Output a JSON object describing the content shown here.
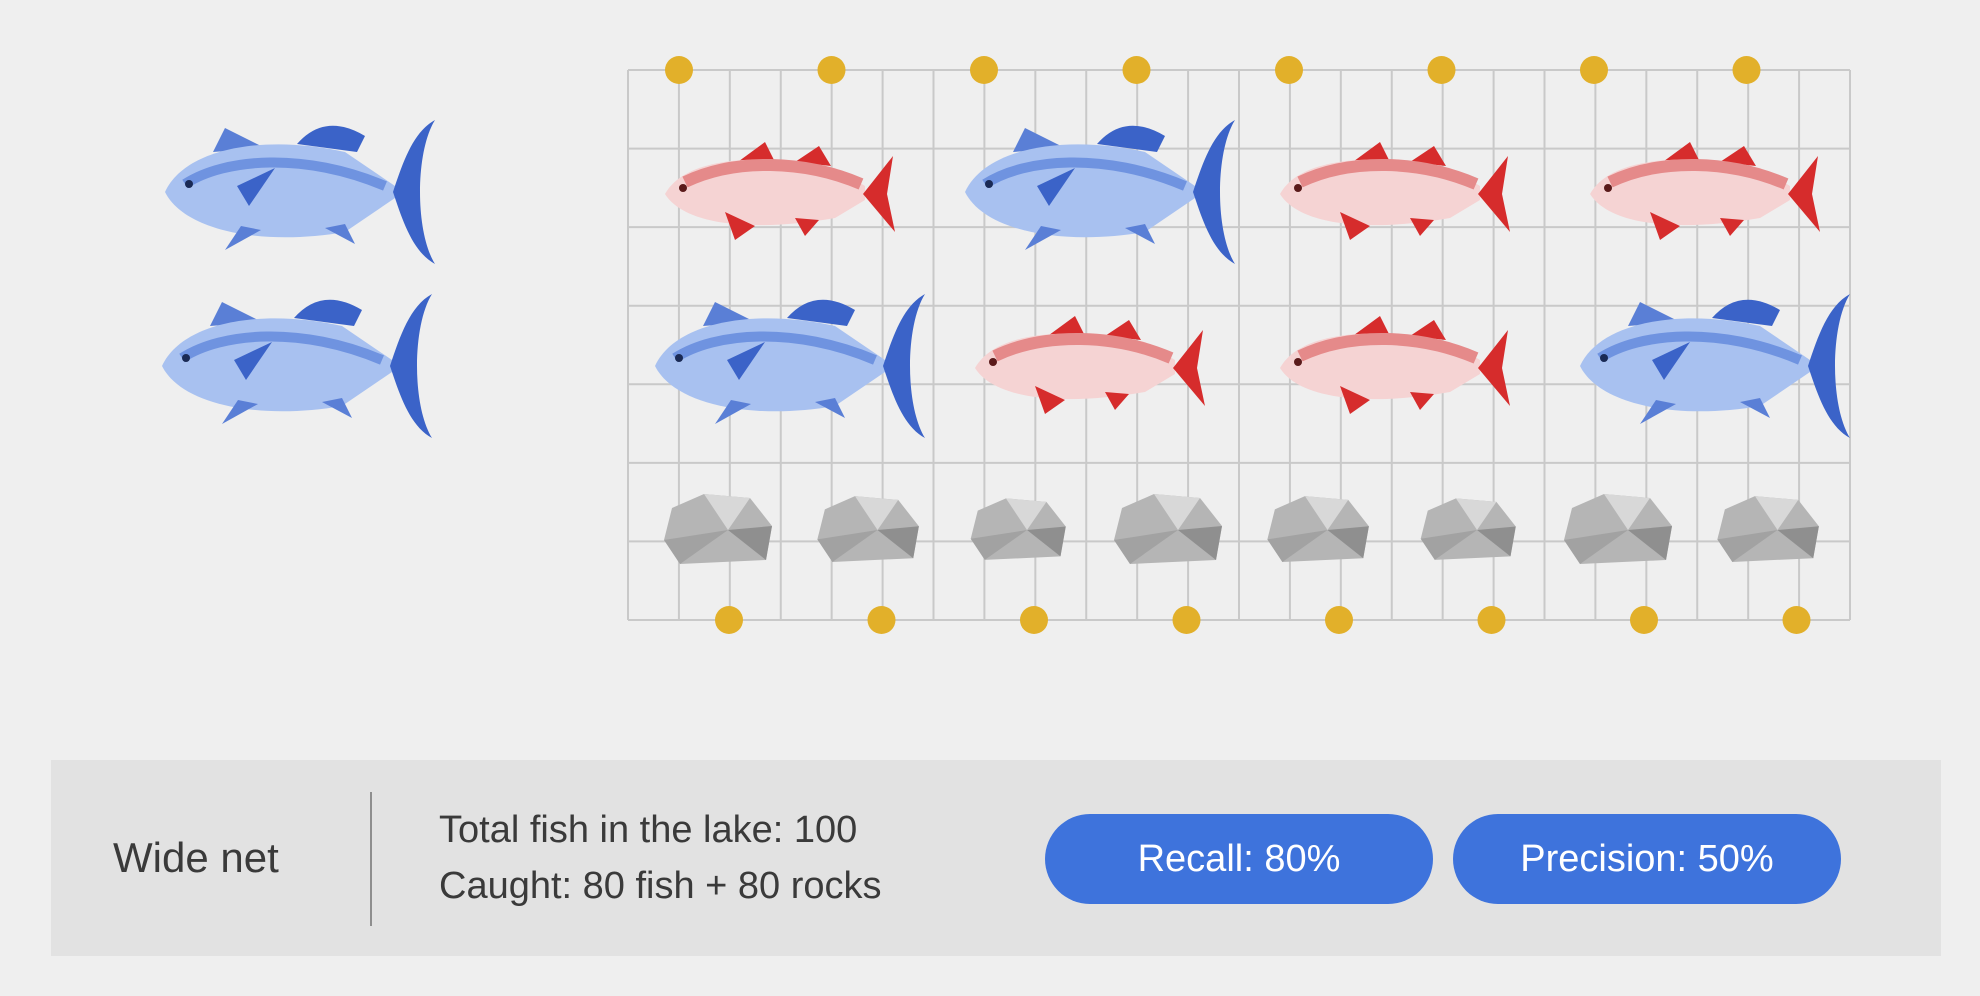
{
  "info_bar": {
    "title": "Wide net",
    "stats": [
      "Total fish in the lake: 100",
      "Caught: 80 fish + 80 rocks"
    ],
    "recall_label": "Recall: 80%",
    "precision_label": "Precision: 50%"
  },
  "uncaught_fish": [
    "tuna",
    "tuna"
  ],
  "net": {
    "rows": [
      [
        "salmon",
        "tuna",
        "salmon",
        "salmon"
      ],
      [
        "tuna",
        "salmon",
        "salmon",
        "tuna"
      ]
    ],
    "rocks": 8,
    "floats_per_edge": 8
  },
  "colors": {
    "tuna_body": "#a8c1f0",
    "tuna_dark": "#3b63c8",
    "salmon_body": "#f5d3d3",
    "salmon_dark": "#d62c2c",
    "rock": "#b5b5b5",
    "float": "#e2b02a",
    "net_line": "#c9c9c9",
    "pill": "#3e73dc"
  }
}
